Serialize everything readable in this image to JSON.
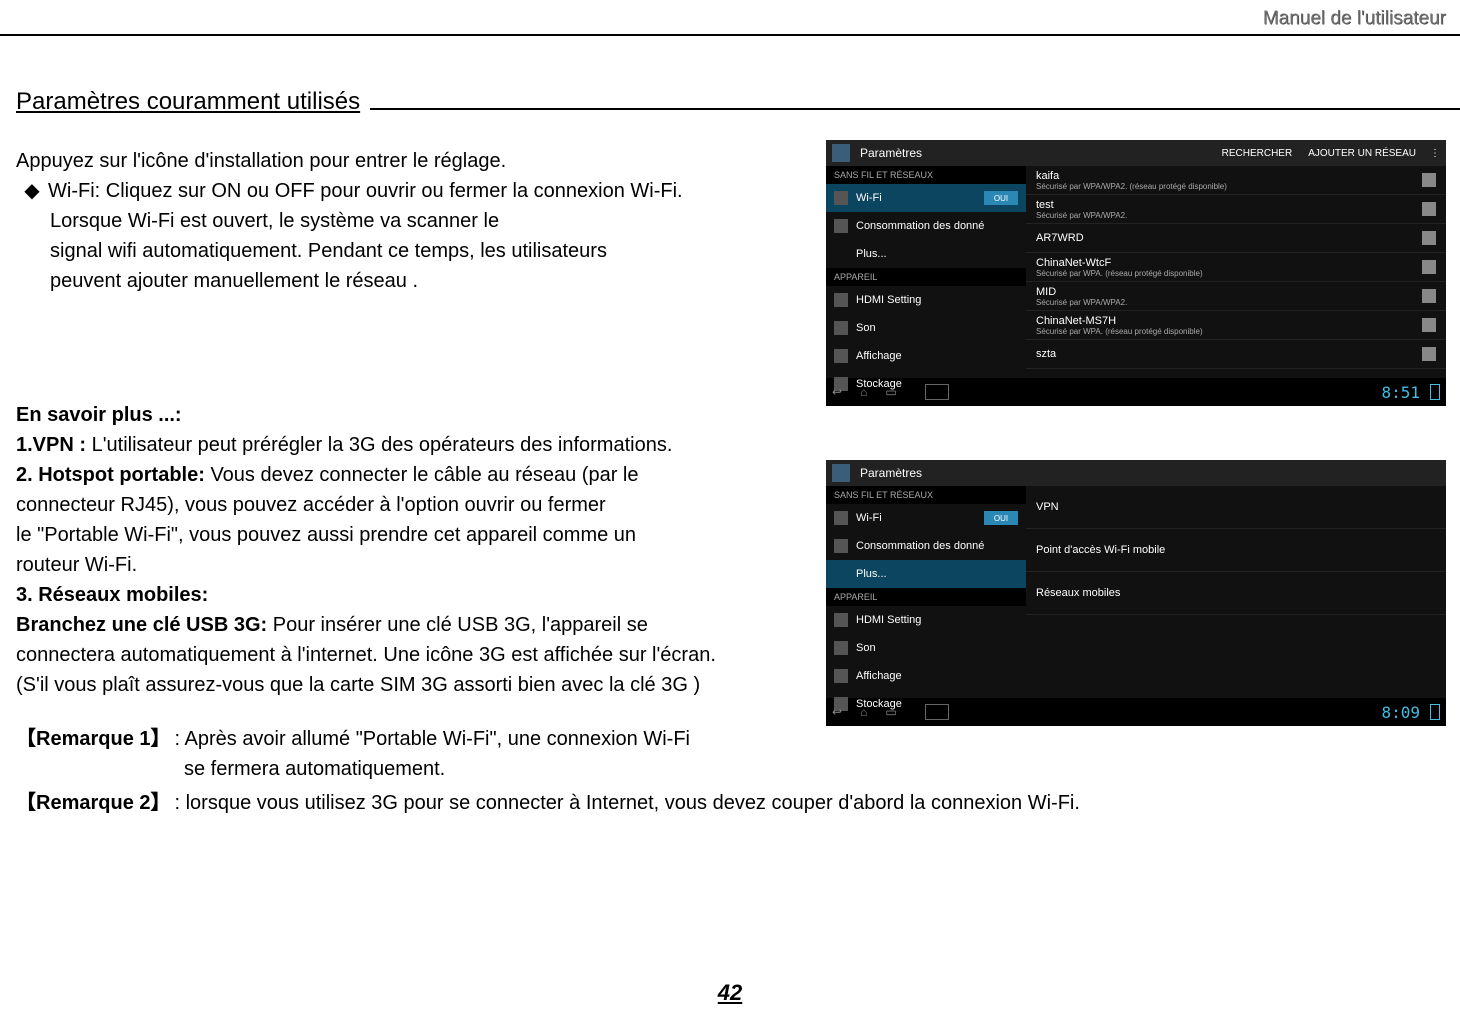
{
  "header": {
    "manual": "Manuel de l'utilisateur"
  },
  "section_title": "Paramètres couramment utilisés",
  "intro": "Appuyez sur l'icône d'installation pour entrer le réglage.",
  "bullet": {
    "mark": "◆",
    "l1": "Wi-Fi: Cliquez sur ON ou OFF pour ouvrir ou fermer la connexion Wi-Fi.",
    "l2": "Lorsque Wi-Fi est ouvert, le système va scanner le",
    "l3": "signal wifi automatiquement. Pendant ce temps, les utilisateurs",
    "l4": "peuvent ajouter manuellement le réseau ."
  },
  "more": {
    "title": "En savoir plus ...:",
    "p1_b": "1.VPN :",
    "p1_t": " L'utilisateur peut prérégler la 3G des opérateurs des informations.",
    "p2_b": "2. Hotspot portable:",
    "p2_t": " Vous devez connecter le câble au réseau (par le",
    "p2_l2": "connecteur RJ45), vous pouvez accéder à l'option ouvrir ou fermer",
    "p2_l3": "le \"Portable Wi-Fi\", vous pouvez aussi prendre cet appareil comme un",
    "p2_l4": "routeur Wi-Fi.",
    "p3_b": "3. Réseaux mobiles:",
    "p4_b": "Branchez une clé USB  3G:",
    "p4_t": " Pour insérer une clé USB 3G, l'appareil se",
    "p4_l2": "connectera automatiquement à l'internet. Une icône 3G est affichée sur l'écran.",
    "p4_l3": "(S'il vous plaît assurez-vous que la carte SIM 3G   assorti bien avec la clé 3G )"
  },
  "notes": {
    "n1_lbl": "【Remarque 1】",
    "n1_l1": ": Après avoir allumé \"Portable Wi-Fi\", une connexion Wi-Fi",
    "n1_l2": "se fermera automatiquement.",
    "n2_lbl": "【Remarque 2】",
    "n2_l1": ": lorsque vous utilisez 3G pour se connecter à Internet, vous devez couper d'abord la connexion   Wi-Fi."
  },
  "page_number": "42",
  "shot": {
    "actionbar_title": "Paramètres",
    "search": "RECHERCHER",
    "add_net": "AJOUTER UN RÉSEAU",
    "menu": "⋮",
    "side_hdr1": "SANS FIL ET RÉSEAUX",
    "side_hdr2": "APPAREIL",
    "wifi_item": "Wi-Fi",
    "toggle_on": "OUI",
    "data_item": "Consommation des donné",
    "plus_item": "Plus...",
    "hdmi_item": "HDMI Setting",
    "son_item": "Son",
    "aff_item": "Affichage",
    "stock_item": "Stockage",
    "nets": [
      {
        "name": "kaifa",
        "sub": "Sécurisé par WPA/WPA2. (réseau protégé disponible)"
      },
      {
        "name": "test",
        "sub": "Sécurisé par WPA/WPA2."
      },
      {
        "name": "AR7WRD",
        "sub": ""
      },
      {
        "name": "ChinaNet-WtcF",
        "sub": "Sécurisé par WPA. (réseau protégé disponible)"
      },
      {
        "name": "MID",
        "sub": "Sécurisé par WPA/WPA2."
      },
      {
        "name": "ChinaNet-MS7H",
        "sub": "Sécurisé par WPA. (réseau protégé disponible)"
      },
      {
        "name": "szta",
        "sub": ""
      }
    ],
    "time1": "8:51",
    "time2": "8:09",
    "more_opts": [
      "VPN",
      "Point d'accès Wi-Fi mobile",
      "Réseaux mobiles"
    ],
    "nav_back": "↩",
    "nav_home": "⌂",
    "nav_recent": "▭"
  }
}
